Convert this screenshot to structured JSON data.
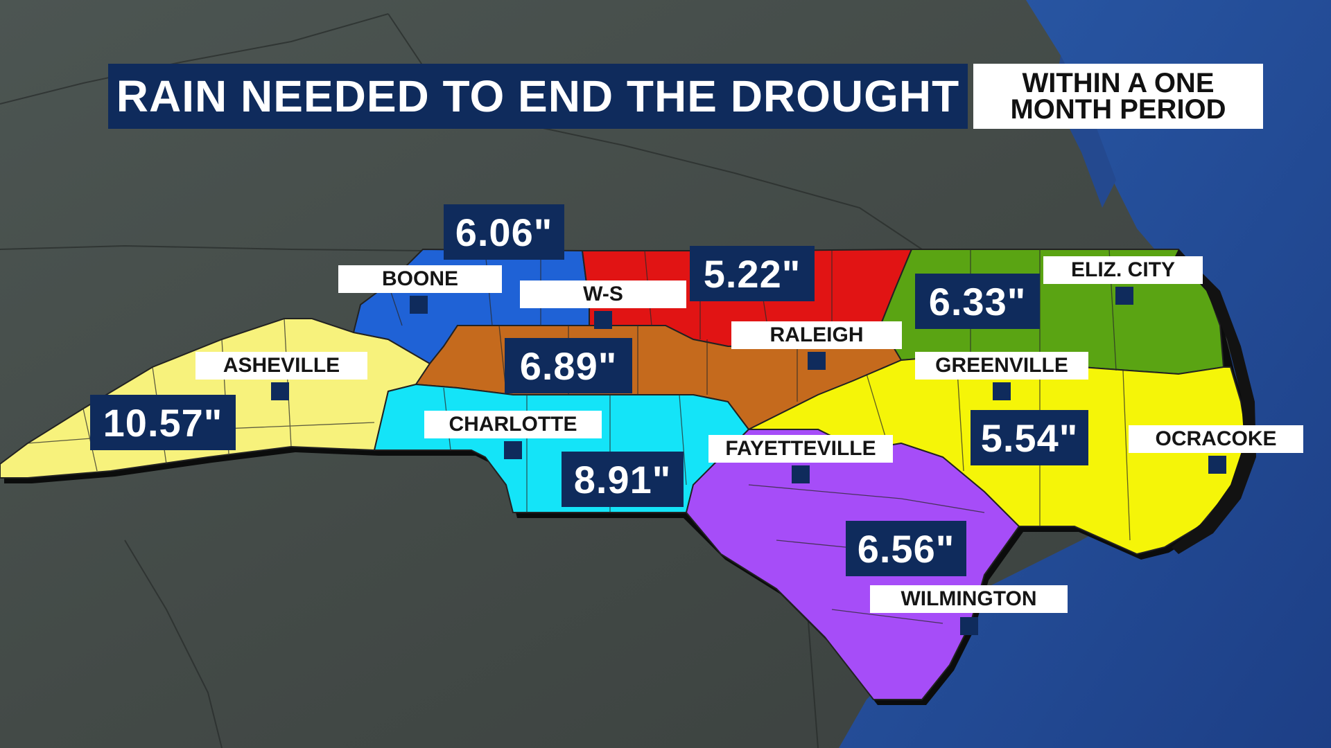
{
  "title": "RAIN NEEDED TO END THE DROUGHT",
  "subtitle_line1": "WITHIN A ONE",
  "subtitle_line2": "MONTH PERIOD",
  "regions": {
    "northwest": {
      "value": "6.06\"",
      "color": "#1f62d6"
    },
    "north_central": {
      "value": "5.22\"",
      "color": "#e11414"
    },
    "northeast": {
      "value": "6.33\"",
      "color": "#5aa413"
    },
    "piedmont": {
      "value": "6.89\"",
      "color": "#c56a1d"
    },
    "mountains": {
      "value": "10.57\"",
      "color": "#f7f27c"
    },
    "southern_piedmont": {
      "value": "8.91\"",
      "color": "#14e4f8"
    },
    "southeast": {
      "value": "6.56\"",
      "color": "#a64df8"
    },
    "central_coastal": {
      "value": "5.54\"",
      "color": "#f5f508"
    }
  },
  "cities": {
    "boone": "BOONE",
    "ws": "W-S",
    "raleigh": "RALEIGH",
    "eliz_city": "ELIZ. CITY",
    "asheville": "ASHEVILLE",
    "greenville": "GREENVILLE",
    "charlotte": "CHARLOTTE",
    "fayetteville": "FAYETTEVILLE",
    "ocracoke": "OCRACOKE",
    "wilmington": "WILMINGTON"
  }
}
